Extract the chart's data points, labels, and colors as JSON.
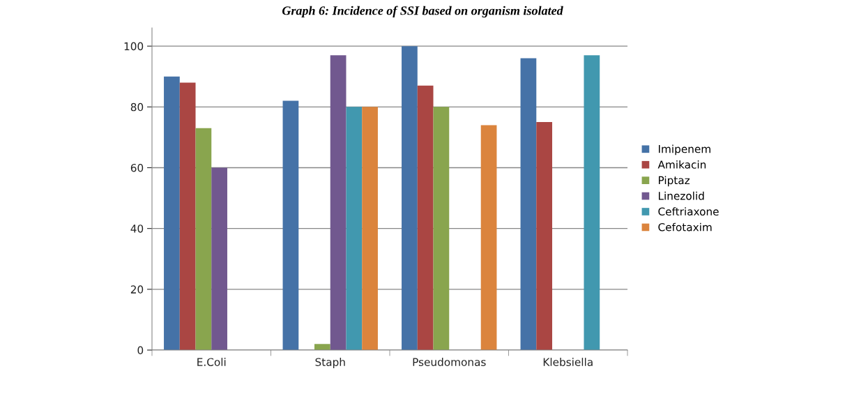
{
  "chart_data": {
    "type": "bar",
    "title": "Graph 6: Incidence of SSI based on organism isolated",
    "categories": [
      "E.Coli",
      "Staph",
      "Pseudomonas",
      "Klebsiella"
    ],
    "series": [
      {
        "name": "Imipenem",
        "color": "#4572a7",
        "values": [
          90,
          82,
          100,
          96
        ]
      },
      {
        "name": "Amikacin",
        "color": "#aa4643",
        "values": [
          88,
          null,
          87,
          75
        ]
      },
      {
        "name": "Piptaz",
        "color": "#89a54e",
        "values": [
          73,
          2,
          80,
          null
        ]
      },
      {
        "name": "Linezolid",
        "color": "#71588f",
        "values": [
          60,
          97,
          null,
          null
        ]
      },
      {
        "name": "Ceftriaxone",
        "color": "#4198af",
        "values": [
          null,
          80,
          null,
          97
        ]
      },
      {
        "name": "Cefotaxim",
        "color": "#db843d",
        "values": [
          null,
          80,
          74,
          null
        ]
      }
    ],
    "ylim": [
      0,
      106
    ],
    "yticks": [
      0,
      20,
      40,
      60,
      80,
      100
    ],
    "grid": "y",
    "legend": "right"
  }
}
